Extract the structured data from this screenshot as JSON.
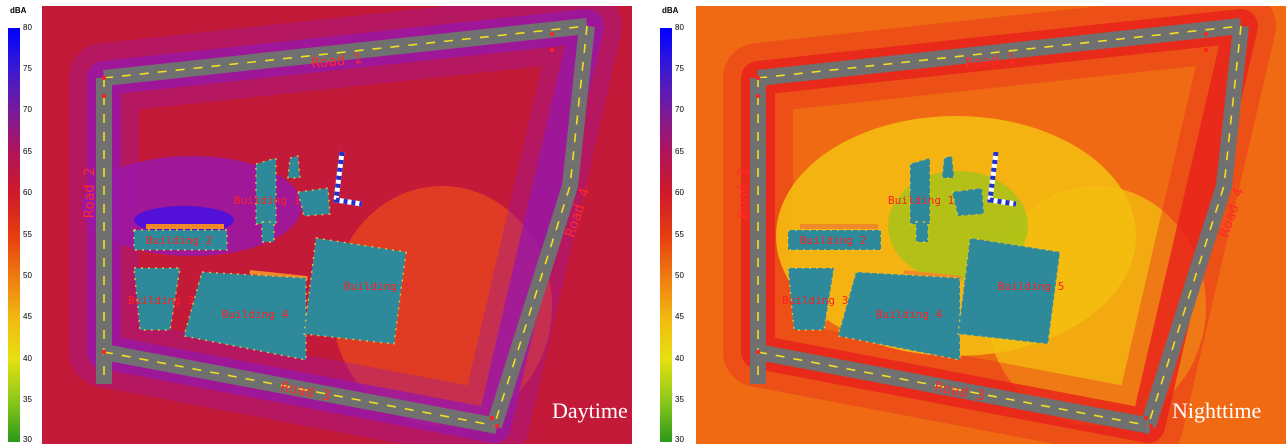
{
  "legend": {
    "unit": "dBA",
    "ticks": [
      "80",
      "75",
      "70",
      "65",
      "60",
      "55",
      "50",
      "45",
      "40",
      "35",
      "30"
    ],
    "gradient": [
      "#0000ff",
      "#3a1ad0",
      "#7a1a9c",
      "#b0145a",
      "#d01a2a",
      "#e63c10",
      "#f07a10",
      "#f2b810",
      "#e6e010",
      "#8cc81a",
      "#2a9a1a"
    ]
  },
  "maps": [
    {
      "id": "daytime",
      "period_label": "Daytime",
      "colors": {
        "base": "#c41a3a",
        "hot": "#9a18a8",
        "core": "#4a10e0",
        "warm": "#e8481c"
      }
    },
    {
      "id": "nighttime",
      "period_label": "Nighttime",
      "colors": {
        "base": "#f06a14",
        "hot": "#e8201c",
        "core": "#9cc41a",
        "warm": "#f4c010"
      }
    }
  ],
  "roads": [
    "Road 1",
    "Road 2",
    "Road 3",
    "Road 4"
  ],
  "buildings": [
    "Building 1",
    "Building 2",
    "Building 3",
    "Building 4",
    "Building 5"
  ]
}
